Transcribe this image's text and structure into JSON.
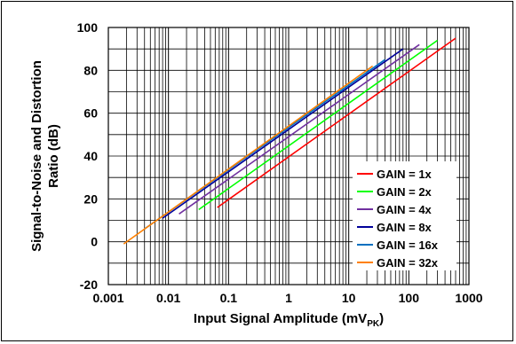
{
  "chart_data": {
    "type": "line",
    "title": "",
    "xlabel": "Input Signal Amplitude (mV",
    "xlabel_sub": "PK",
    "xlabel_close": ")",
    "ylabel_line1": "Signal-to-Noise and Distortion",
    "ylabel_line2": "Ratio (dB)",
    "x_scale": "log",
    "xlim": [
      0.001,
      1000
    ],
    "ylim": [
      -20,
      100
    ],
    "x_ticks": [
      "0.001",
      "0.01",
      "0.1",
      "1",
      "10",
      "100",
      "1000"
    ],
    "x_tick_values": [
      0.001,
      0.01,
      0.1,
      1,
      10,
      100,
      1000
    ],
    "y_ticks": [
      "-20",
      "0",
      "20",
      "40",
      "60",
      "80",
      "100"
    ],
    "y_tick_values": [
      -20,
      0,
      20,
      40,
      60,
      80,
      100
    ],
    "grid": true,
    "legend_position": "bottom-right",
    "series": [
      {
        "name": "GAIN = 1x",
        "color": "#ff0000",
        "x": [
          0.065,
          600
        ],
        "y": [
          16,
          95
        ]
      },
      {
        "name": "GAIN = 2x",
        "color": "#00ff00",
        "x": [
          0.032,
          300
        ],
        "y": [
          15,
          94
        ]
      },
      {
        "name": "GAIN = 4x",
        "color": "#7030a0",
        "x": [
          0.015,
          150
        ],
        "y": [
          13,
          92
        ]
      },
      {
        "name": "GAIN = 8x",
        "color": "#000099",
        "x": [
          0.008,
          80
        ],
        "y": [
          11,
          90
        ]
      },
      {
        "name": "GAIN = 16x",
        "color": "#0070c0",
        "x": [
          0.004,
          40
        ],
        "y": [
          6,
          85
        ]
      },
      {
        "name": "GAIN = 32x",
        "color": "#ff8000",
        "x": [
          0.0018,
          25
        ],
        "y": [
          -1,
          82
        ]
      }
    ]
  }
}
